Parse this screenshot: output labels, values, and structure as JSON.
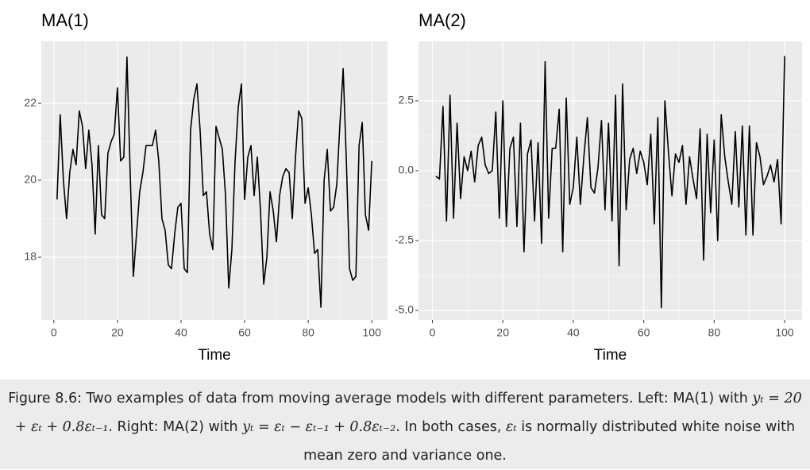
{
  "chart_data": [
    {
      "type": "line",
      "title": "MA(1)",
      "x_label": "Time",
      "x": [
        1,
        2,
        3,
        4,
        5,
        6,
        7,
        8,
        9,
        10,
        11,
        12,
        13,
        14,
        15,
        16,
        17,
        18,
        19,
        20,
        21,
        22,
        23,
        24,
        25,
        26,
        27,
        28,
        29,
        30,
        31,
        32,
        33,
        34,
        35,
        36,
        37,
        38,
        39,
        40,
        41,
        42,
        43,
        44,
        45,
        46,
        47,
        48,
        49,
        50,
        51,
        52,
        53,
        54,
        55,
        56,
        57,
        58,
        59,
        60,
        61,
        62,
        63,
        64,
        65,
        66,
        67,
        68,
        69,
        70,
        71,
        72,
        73,
        74,
        75,
        76,
        77,
        78,
        79,
        80,
        81,
        82,
        83,
        84,
        85,
        86,
        87,
        88,
        89,
        90,
        91,
        92,
        93,
        94,
        95,
        96,
        97,
        98,
        99,
        100
      ],
      "series": [
        {
          "color": "#000000",
          "values": [
            19.5,
            21.7,
            20.0,
            19.0,
            20.2,
            20.8,
            20.4,
            21.8,
            21.4,
            20.3,
            21.3,
            20.4,
            18.6,
            20.9,
            19.1,
            19.0,
            20.7,
            21.0,
            21.2,
            22.4,
            20.5,
            20.6,
            23.2,
            20.2,
            17.5,
            18.6,
            19.7,
            20.2,
            20.9,
            20.9,
            20.9,
            21.3,
            20.5,
            19.0,
            18.7,
            17.8,
            17.7,
            18.6,
            19.3,
            19.4,
            17.7,
            17.6,
            21.3,
            22.1,
            22.5,
            21.3,
            19.6,
            19.7,
            18.6,
            18.2,
            21.4,
            21.1,
            20.8,
            19.6,
            17.2,
            18.2,
            20.5,
            21.9,
            22.5,
            19.5,
            20.6,
            20.9,
            19.6,
            20.6,
            19.2,
            17.3,
            18.0,
            19.7,
            19.2,
            18.4,
            19.6,
            20.1,
            20.3,
            20.2,
            19.0,
            20.6,
            21.8,
            21.6,
            19.4,
            19.8,
            19.1,
            18.1,
            18.2,
            16.7,
            20.0,
            20.8,
            19.2,
            19.3,
            19.9,
            21.5,
            22.9,
            20.5,
            17.7,
            17.4,
            17.5,
            20.9,
            21.5,
            19.1,
            18.7,
            20.5
          ]
        }
      ],
      "xlim": [
        -3.95,
        104.95
      ],
      "xticks": [
        0,
        20,
        40,
        60,
        80,
        100
      ],
      "ylim": [
        16.37,
        23.61
      ],
      "yticks": [
        18,
        20,
        22
      ],
      "grid": true
    },
    {
      "type": "line",
      "title": "MA(2)",
      "x_label": "Time",
      "x": [
        1,
        2,
        3,
        4,
        5,
        6,
        7,
        8,
        9,
        10,
        11,
        12,
        13,
        14,
        15,
        16,
        17,
        18,
        19,
        20,
        21,
        22,
        23,
        24,
        25,
        26,
        27,
        28,
        29,
        30,
        31,
        32,
        33,
        34,
        35,
        36,
        37,
        38,
        39,
        40,
        41,
        42,
        43,
        44,
        45,
        46,
        47,
        48,
        49,
        50,
        51,
        52,
        53,
        54,
        55,
        56,
        57,
        58,
        59,
        60,
        61,
        62,
        63,
        64,
        65,
        66,
        67,
        68,
        69,
        70,
        71,
        72,
        73,
        74,
        75,
        76,
        77,
        78,
        79,
        80,
        81,
        82,
        83,
        84,
        85,
        86,
        87,
        88,
        89,
        90,
        91,
        92,
        93,
        94,
        95,
        96,
        97,
        98,
        99,
        100
      ],
      "series": [
        {
          "color": "#000000",
          "values": [
            -0.2,
            -0.3,
            2.3,
            -1.8,
            2.7,
            -1.7,
            1.7,
            -1.0,
            0.5,
            0.0,
            0.7,
            -0.4,
            0.9,
            1.2,
            0.2,
            -0.1,
            0.0,
            2.1,
            -1.7,
            2.5,
            -2.0,
            0.8,
            1.2,
            -2.0,
            1.7,
            -2.9,
            0.6,
            1.1,
            -1.8,
            1.0,
            -2.6,
            3.9,
            -1.7,
            0.8,
            0.8,
            2.2,
            -2.9,
            2.6,
            -1.2,
            -0.6,
            1.2,
            -1.2,
            0.5,
            1.9,
            -0.6,
            -0.8,
            0.1,
            1.8,
            -1.4,
            1.7,
            -1.8,
            2.7,
            -3.4,
            3.1,
            -1.4,
            0.4,
            0.8,
            -0.1,
            0.7,
            0.3,
            -0.5,
            1.3,
            -1.9,
            1.9,
            -4.9,
            2.5,
            0.7,
            -0.9,
            0.6,
            0.3,
            0.9,
            -1.2,
            0.5,
            -0.3,
            -1.0,
            1.5,
            -3.2,
            1.3,
            -1.5,
            1.1,
            -2.5,
            2.0,
            0.5,
            -0.4,
            -1.2,
            1.4,
            -1.3,
            1.6,
            -2.3,
            1.6,
            -2.3,
            1.0,
            0.5,
            -0.5,
            -0.2,
            0.2,
            -0.4,
            0.4,
            -1.9,
            4.1
          ]
        }
      ],
      "xlim": [
        -3.95,
        104.95
      ],
      "xticks": [
        0,
        20,
        40,
        60,
        80,
        100
      ],
      "ylim": [
        -5.34,
        4.63
      ],
      "yticks": [
        {
          "value": -5,
          "label": "-5.0"
        },
        -2.5,
        {
          "value": 0,
          "label": "0.0"
        },
        2.5
      ],
      "grid": true
    }
  ],
  "caption": {
    "text1": "Figure 8.6: Two examples of data from moving average models with different parameters. Left: MA(1) with ",
    "math1": "yₜ = 20 + εₜ + 0.8εₜ₋₁",
    "text2": ". Right: MA(2) with ",
    "math2": "yₜ = εₜ − εₜ₋₁ + 0.8εₜ₋₂",
    "text3": ". In both cases, ",
    "math3": "εₜ",
    "text4": " is normally distributed white noise with mean zero and variance one."
  }
}
